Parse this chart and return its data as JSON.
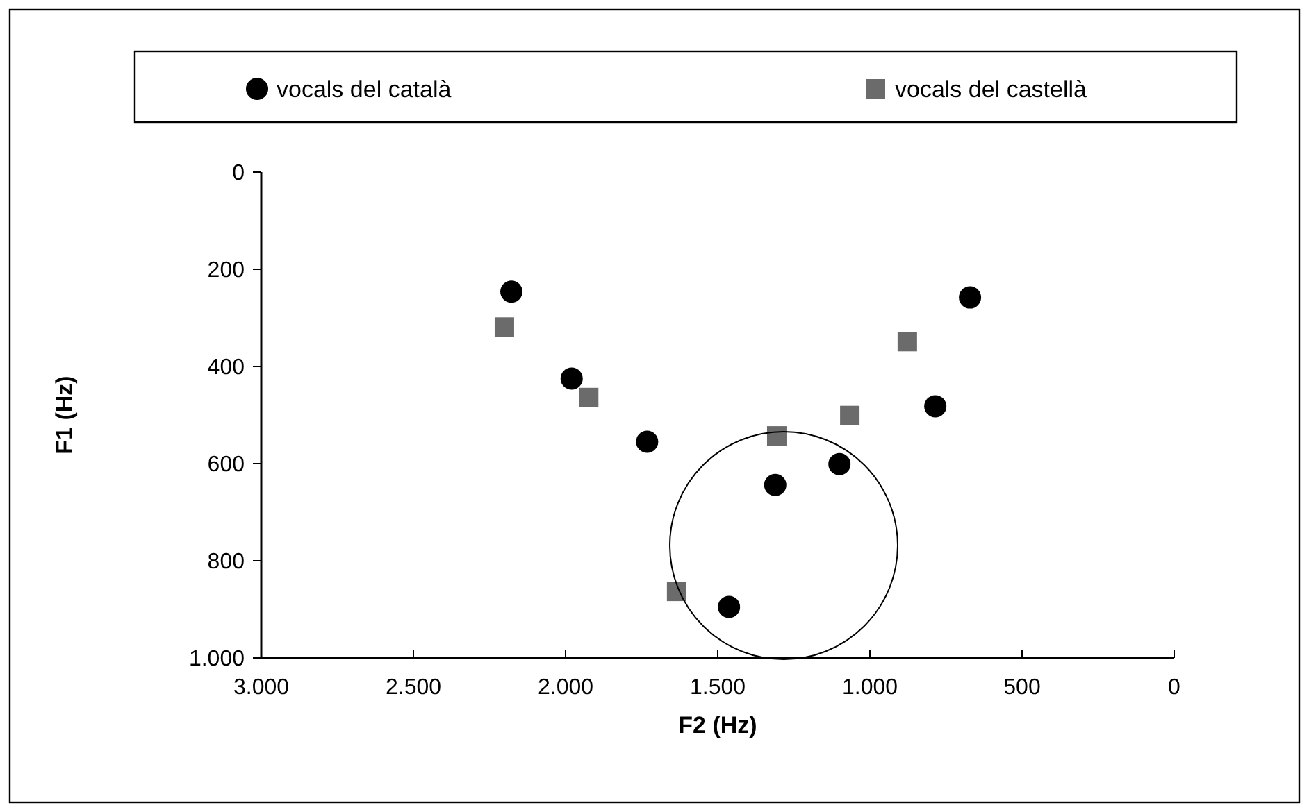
{
  "chart_data": {
    "type": "scatter",
    "xlabel": "F2 (Hz)",
    "ylabel": "F1 (Hz)",
    "xlim": [
      3000,
      0
    ],
    "ylim": [
      1000,
      0
    ],
    "xticks": [
      {
        "value": 3000,
        "label": "3.000"
      },
      {
        "value": 2500,
        "label": "2.500"
      },
      {
        "value": 2000,
        "label": "2.000"
      },
      {
        "value": 1500,
        "label": "1.500"
      },
      {
        "value": 1000,
        "label": "1.000"
      },
      500,
      0
    ],
    "yticks": [
      0,
      200,
      400,
      600,
      800,
      {
        "value": 1000,
        "label": "1.000"
      }
    ],
    "grid": false,
    "legend": "top",
    "series": [
      {
        "name": "vocals del català",
        "color": "#000000",
        "marker": "circle",
        "x": [
          2178,
          1980,
          1732,
          1463,
          1311,
          1100,
          785,
          671
        ],
        "values": [
          246,
          425,
          555,
          895,
          644,
          601,
          482,
          258
        ]
      },
      {
        "name": "vocals del castellà",
        "color": "#6b6b6b",
        "marker": "square",
        "x": [
          2201,
          1924,
          1635,
          1306,
          1066,
          877
        ],
        "values": [
          319,
          464,
          863,
          543,
          501,
          349
        ]
      }
    ]
  }
}
